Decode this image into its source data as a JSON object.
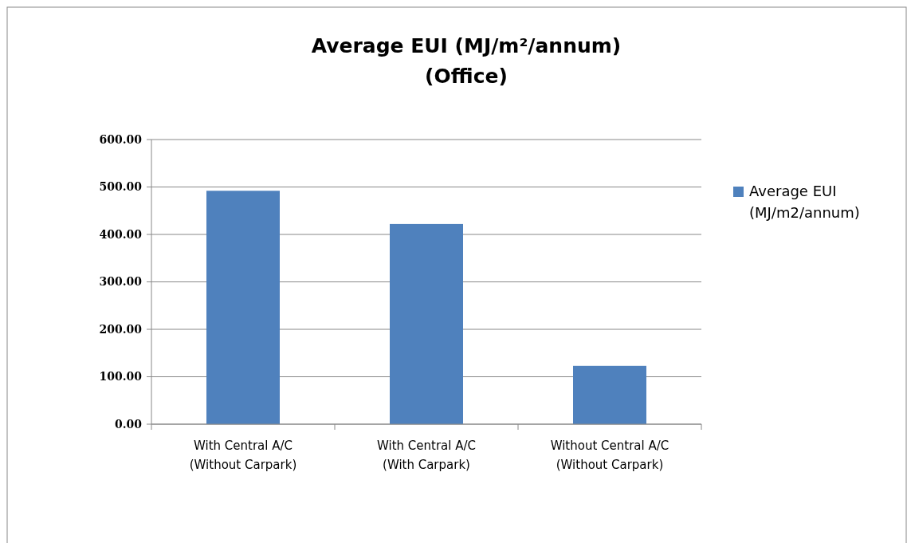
{
  "chart_data": {
    "type": "bar",
    "title": "Average EUI (MJ/m²/annum)\n(Office)",
    "categories": [
      "With Central A/C\n(Without Carpark)",
      "With Central A/C\n(With Carpark)",
      "Without Central A/C\n(Without Carpark)"
    ],
    "series": [
      {
        "name": "Average EUI\n(MJ/m2/annum)",
        "color": "#4f81bd",
        "values": [
          492,
          422,
          123
        ]
      }
    ],
    "ylim": [
      0,
      600
    ],
    "yticks": [
      {
        "value": 0,
        "label": "0.00"
      },
      {
        "value": 100,
        "label": "100.00"
      },
      {
        "value": 200,
        "label": "200.00"
      },
      {
        "value": 300,
        "label": "300.00"
      },
      {
        "value": 400,
        "label": "400.00"
      },
      {
        "value": 500,
        "label": "500.00"
      },
      {
        "value": 600,
        "label": "600.00"
      }
    ],
    "grid": "y",
    "legend": "right"
  }
}
